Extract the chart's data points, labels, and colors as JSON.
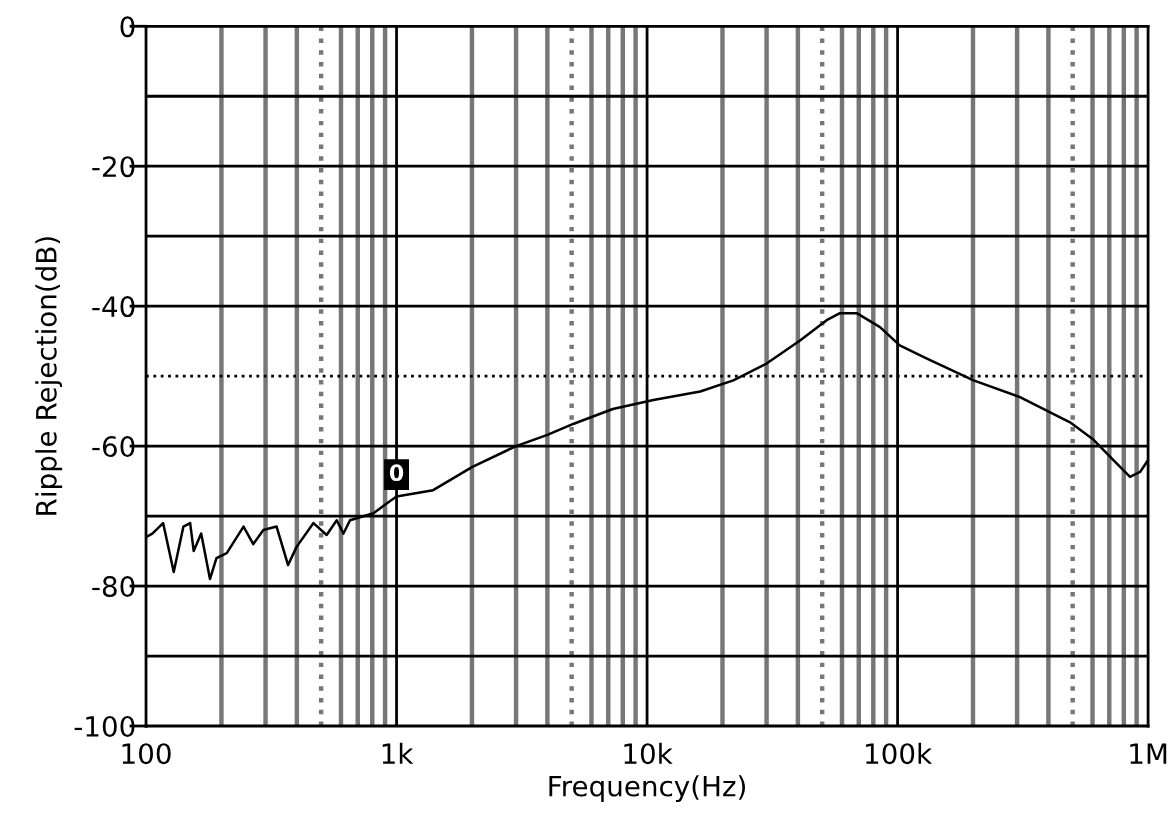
{
  "chart_data": {
    "type": "line",
    "xlabel": "Frequency(Hz)",
    "ylabel": "Ripple Rejection(dB)",
    "log": "x",
    "xlim": [
      100,
      1000000
    ],
    "ylim": [
      -100,
      0
    ],
    "xticks": [
      {
        "value": 100,
        "label": "100"
      },
      {
        "value": 200,
        "label": null
      },
      {
        "value": 300,
        "label": null
      },
      {
        "value": 400,
        "label": null
      },
      {
        "value": 500,
        "label": null
      },
      {
        "value": 600,
        "label": null
      },
      {
        "value": 700,
        "label": null
      },
      {
        "value": 800,
        "label": null
      },
      {
        "value": 900,
        "label": null
      },
      {
        "value": 1000,
        "label": "1k"
      },
      {
        "value": 2000,
        "label": null
      },
      {
        "value": 3000,
        "label": null
      },
      {
        "value": 4000,
        "label": null
      },
      {
        "value": 5000,
        "label": null
      },
      {
        "value": 6000,
        "label": null
      },
      {
        "value": 7000,
        "label": null
      },
      {
        "value": 8000,
        "label": null
      },
      {
        "value": 9000,
        "label": null
      },
      {
        "value": 10000,
        "label": "10k"
      },
      {
        "value": 20000,
        "label": null
      },
      {
        "value": 30000,
        "label": null
      },
      {
        "value": 40000,
        "label": null
      },
      {
        "value": 50000,
        "label": null
      },
      {
        "value": 60000,
        "label": null
      },
      {
        "value": 70000,
        "label": null
      },
      {
        "value": 80000,
        "label": null
      },
      {
        "value": 90000,
        "label": null
      },
      {
        "value": 100000,
        "label": "100k"
      },
      {
        "value": 200000,
        "label": null
      },
      {
        "value": 300000,
        "label": null
      },
      {
        "value": 400000,
        "label": null
      },
      {
        "value": 500000,
        "label": null
      },
      {
        "value": 600000,
        "label": null
      },
      {
        "value": 700000,
        "label": null
      },
      {
        "value": 800000,
        "label": null
      },
      {
        "value": 900000,
        "label": null
      },
      {
        "value": 1000000,
        "label": "1M"
      }
    ],
    "yticks": [
      -100,
      {
        "value": -90,
        "label": null
      },
      -80,
      {
        "value": -70,
        "label": null
      },
      -60,
      -40,
      {
        "value": -30,
        "label": null
      },
      -20,
      {
        "value": -10,
        "label": null
      },
      0
    ],
    "grid": true,
    "marker": "none",
    "line_style": "solid",
    "annotations": [
      {
        "text": "0",
        "x": 1000,
        "y": -67.2
      }
    ],
    "ref_lines": [
      {
        "axis": "y",
        "value": -50,
        "color": "#000000",
        "line_style": "dotted"
      }
    ],
    "series": [
      {
        "color": "#000000",
        "x": [
          100,
          106,
          117,
          129,
          141,
          150,
          155,
          166,
          180,
          191,
          210,
          245,
          268,
          294,
          332,
          369,
          399,
          466,
          526,
          577,
          614,
          652,
          809,
          913,
          1000,
          1400,
          2000,
          3000,
          4000,
          5100,
          7300,
          10600,
          16300,
          22100,
          30000,
          40800,
          52100,
          58900,
          68700,
          85100,
          102000,
          131000,
          201000,
          308000,
          488000,
          606000,
          727000,
          847000,
          929000,
          1000000
        ],
        "values": [
          -73,
          -72.5,
          -71,
          -78,
          -71.5,
          -71,
          -75,
          -72.5,
          -79,
          -76,
          -75.3,
          -71.5,
          -74,
          -72,
          -71.5,
          -77,
          -74.4,
          -71,
          -72.7,
          -70.6,
          -72.5,
          -70.6,
          -69.6,
          -68.2,
          -67.2,
          -66.3,
          -63,
          -60,
          -58.4,
          -56.8,
          -54.7,
          -53.4,
          -52.2,
          -50.6,
          -48.2,
          -44.9,
          -42,
          -41,
          -41,
          -43,
          -45.6,
          -47.5,
          -50.6,
          -53,
          -56.6,
          -59.1,
          -62,
          -64.4,
          -63.7,
          -62
        ]
      }
    ]
  }
}
